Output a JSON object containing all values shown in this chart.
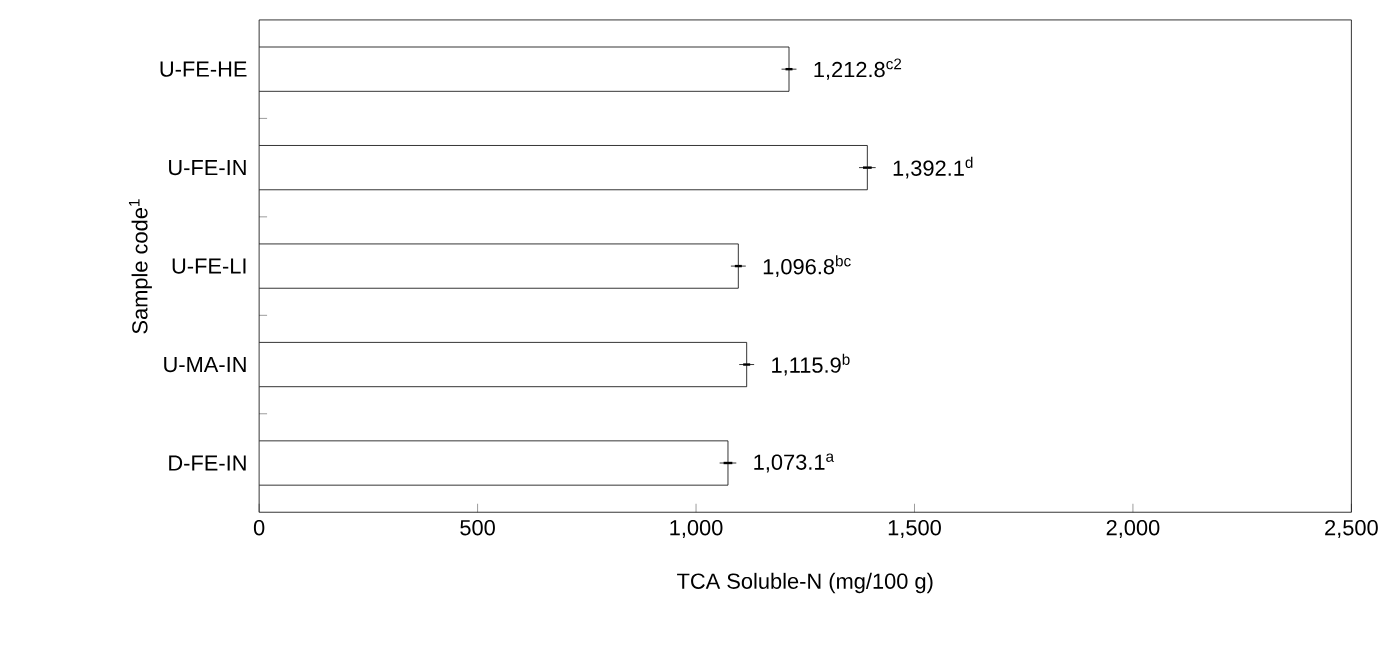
{
  "chart_data": {
    "type": "bar",
    "orientation": "horizontal",
    "xlabel": "TCA Soluble-N (mg/100 g)",
    "ylabel": "Sample code$^{1}$",
    "categories": [
      "U-FE-HE",
      "U-FE-IN",
      "U-FE-LI",
      "U-MA-IN",
      "D-FE-IN"
    ],
    "values": [
      1212.8,
      1392.1,
      1096.8,
      1115.9,
      1073.1
    ],
    "errors": [
      8,
      10,
      8,
      8,
      10
    ],
    "value_labels": [
      "1,212.8$^{c2}$",
      "1,392.1$^{d}$",
      "1,096.8$^{bc}$",
      "1,115.9$^{b}$",
      "1,073.1$^{a}$"
    ],
    "color": "#ffffff",
    "xlim": [
      0,
      2500
    ],
    "xticks": [
      0,
      {
        "value": 500,
        "label": "500"
      },
      {
        "value": 1000,
        "label": "1,000"
      },
      {
        "value": 1500,
        "label": "1,500"
      },
      {
        "value": 2000,
        "label": "2,000"
      },
      {
        "value": 2500,
        "label": "2,500"
      }
    ],
    "grid": false
  }
}
